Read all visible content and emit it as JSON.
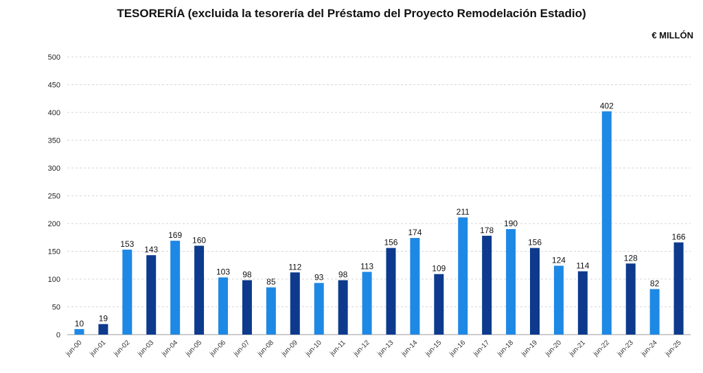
{
  "chart_data": {
    "type": "bar",
    "title": "TESORERÍA (excluida la tesorería del Préstamo del Proyecto Remodelación Estadio)",
    "unit": "€ MILLÓN",
    "xlabel": "",
    "ylabel": "",
    "ylim": [
      0,
      500
    ],
    "yticks": [
      0,
      50,
      100,
      150,
      200,
      250,
      300,
      350,
      400,
      450,
      500
    ],
    "grid": true,
    "legend": "none",
    "categories": [
      "jun-00",
      "jun-01",
      "jun-02",
      "jun-03",
      "jun-04",
      "jun-05",
      "jun-06",
      "jun-07",
      "jun-08",
      "jun-09",
      "jun-10",
      "jun-11",
      "jun-12",
      "jun-13",
      "jun-14",
      "jun-15",
      "jun-16",
      "jun-17",
      "jun-18",
      "jun-19",
      "jun-20",
      "jun-21",
      "jun-22",
      "jun-23",
      "jun-24",
      "jun-25"
    ],
    "values": [
      10,
      19,
      153,
      143,
      169,
      160,
      103,
      98,
      85,
      112,
      93,
      98,
      113,
      156,
      174,
      109,
      211,
      178,
      190,
      156,
      124,
      114,
      402,
      128,
      82,
      166
    ],
    "colors": [
      "#1e88e5",
      "#0d3a8c",
      "#1e88e5",
      "#0d3a8c",
      "#1e88e5",
      "#0d3a8c",
      "#1e88e5",
      "#0d3a8c",
      "#1e88e5",
      "#0d3a8c",
      "#1e88e5",
      "#0d3a8c",
      "#1e88e5",
      "#0d3a8c",
      "#1e88e5",
      "#0d3a8c",
      "#1e88e5",
      "#0d3a8c",
      "#1e88e5",
      "#0d3a8c",
      "#1e88e5",
      "#0d3a8c",
      "#1e88e5",
      "#0d3a8c",
      "#1e88e5",
      "#0d3a8c"
    ]
  }
}
